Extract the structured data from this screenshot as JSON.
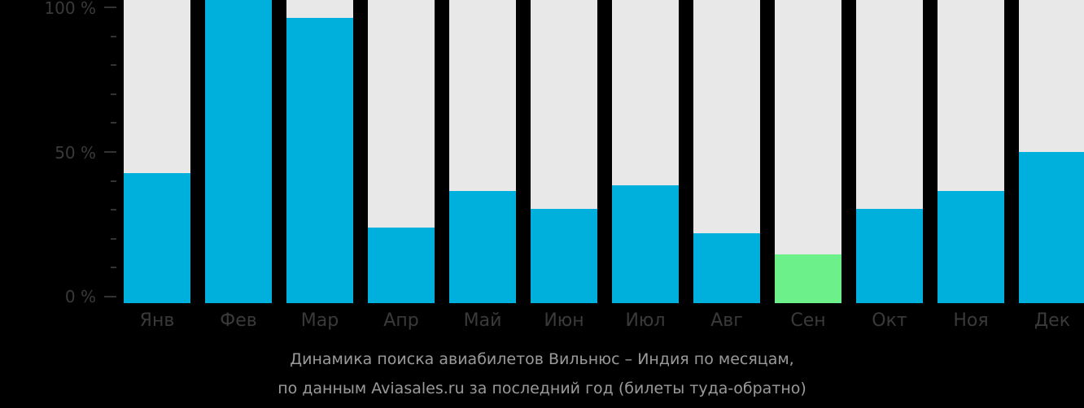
{
  "chart_data": {
    "type": "bar",
    "title": "Динамика поиска авиабилетов Вильнюс – Индия по месяцам,",
    "subtitle": "по данным Aviasales.ru за последний год (билеты туда-обратно)",
    "categories": [
      "Янв",
      "Фев",
      "Мар",
      "Апр",
      "Май",
      "Июн",
      "Июл",
      "Авг",
      "Сен",
      "Окт",
      "Ноя",
      "Дек"
    ],
    "values": [
      43,
      100,
      94,
      25,
      37,
      31,
      39,
      23,
      16,
      31,
      37,
      50
    ],
    "highlight_index": 8,
    "yticks": [
      "100 %",
      "50 %",
      "0 %"
    ],
    "ylim": [
      0,
      100
    ],
    "xlabel": "",
    "ylabel": "",
    "grid": false,
    "legend": null,
    "colors": {
      "bar": "#00b0dc",
      "highlight": "#6cf08a",
      "background_bar": "#e8e8e8"
    }
  },
  "axis": {
    "y100": "100 %",
    "y50": "50 %",
    "y0": "0 %"
  },
  "caption": {
    "line1": "Динамика поиска авиабилетов Вильнюс – Индия по месяцам,",
    "line2": "по данным Aviasales.ru за последний год (билеты туда-обратно)"
  }
}
